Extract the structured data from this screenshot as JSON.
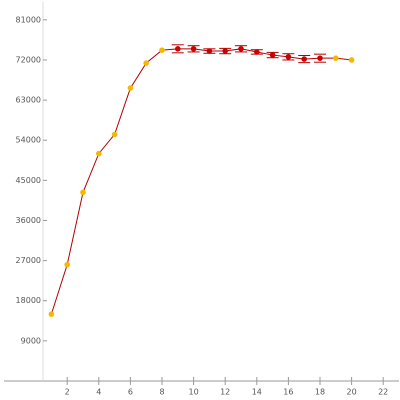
{
  "chart_data": {
    "type": "line",
    "x": [
      1,
      2,
      3,
      4,
      5,
      6,
      7,
      8,
      9,
      10,
      11,
      12,
      13,
      14,
      15,
      16,
      17,
      18,
      19,
      20
    ],
    "series": [
      {
        "color": "#b00000",
        "values": [
          15000,
          26100,
          42300,
          51000,
          55300,
          65700,
          71300,
          74200,
          74500,
          74500,
          74000,
          74000,
          74500,
          73800,
          73100,
          72700,
          72200,
          72400,
          72400,
          72000
        ],
        "errors": [
          null,
          null,
          null,
          null,
          null,
          null,
          null,
          null,
          900,
          700,
          500,
          600,
          700,
          500,
          600,
          700,
          800,
          900,
          null,
          null
        ],
        "point_colors": [
          "#f5b800",
          "#f5b800",
          "#f5b800",
          "#f5b800",
          "#f5b800",
          "#f5b800",
          "#f5b800",
          "#f5b800",
          "#cc0000",
          "#cc0000",
          "#cc0000",
          "#cc0000",
          "#cc0000",
          "#cc0000",
          "#cc0000",
          "#cc0000",
          "#cc0000",
          "#cc0000",
          "#f5b800",
          "#f5b800"
        ]
      }
    ],
    "xlim": [
      -2,
      23
    ],
    "xticks": [
      2,
      4,
      6,
      8,
      10,
      12,
      14,
      16,
      18,
      20,
      22
    ],
    "ylim": [
      0,
      85000
    ],
    "yticks": [
      9000,
      18000,
      27000,
      36000,
      45000,
      54000,
      63000,
      72000,
      81000
    ]
  }
}
